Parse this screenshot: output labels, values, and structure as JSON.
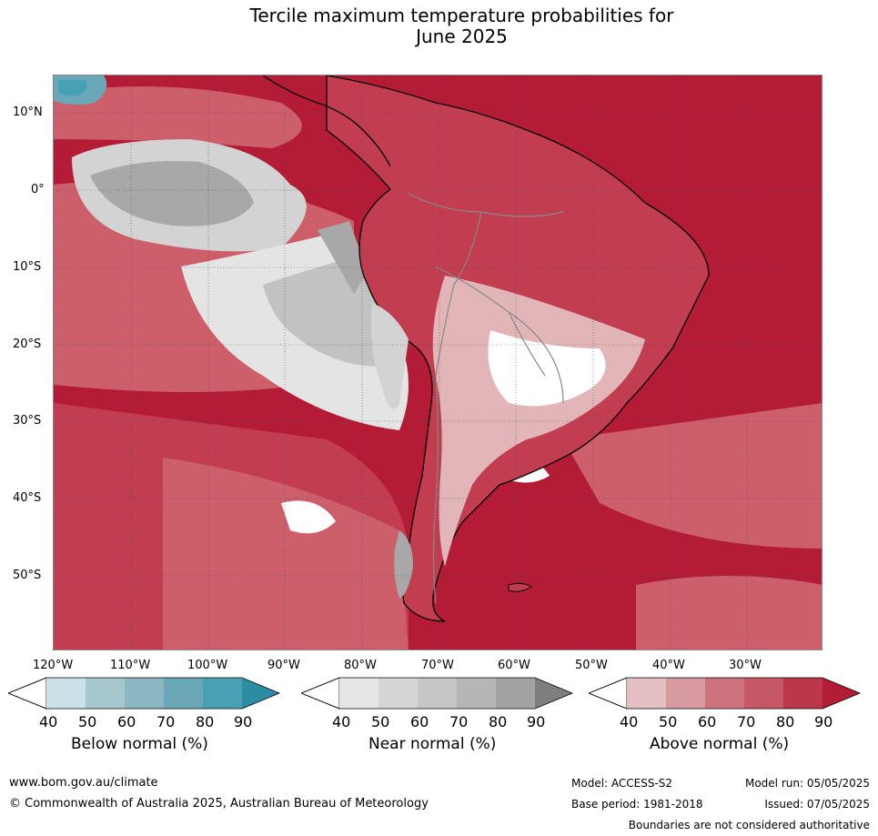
{
  "title": {
    "line1": "Tercile maximum temperature probabilities for",
    "line2": "June 2025"
  },
  "map": {
    "lat_labels": [
      "10°N",
      "0°",
      "10°S",
      "20°S",
      "30°S",
      "40°S",
      "50°S"
    ],
    "lon_labels": [
      "120°W",
      "110°W",
      "100°W",
      "90°W",
      "80°W",
      "70°W",
      "60°W",
      "50°W",
      "40°W",
      "30°W"
    ],
    "colors": {
      "ocean_high": "#b41c35",
      "above_80": "#c23d4f",
      "above_70": "#cc5f6a",
      "above_60": "#d58a92",
      "above_50": "#e2b5b9",
      "near_50": "#e4e4e4",
      "near_60": "#d3d3d3",
      "near_70": "#c2c2c2",
      "near_80": "#a8a8a8",
      "below": "#4aa5b5",
      "coast": "#000000",
      "border": "#888888"
    }
  },
  "legends": [
    {
      "label": "Below normal (%)",
      "ticks": [
        "40",
        "50",
        "60",
        "70",
        "80",
        "90"
      ],
      "colors": [
        "#cbe2e8",
        "#a6c7ce",
        "#8ab6c2",
        "#6aa8b8",
        "#47a0b3",
        "#2b8ca2"
      ]
    },
    {
      "label": "Near normal (%)",
      "ticks": [
        "40",
        "50",
        "60",
        "70",
        "80",
        "90"
      ],
      "colors": [
        "#e6e6e6",
        "#d6d6d6",
        "#c6c6c6",
        "#b6b6b6",
        "#a2a2a2",
        "#7e7e7e"
      ]
    },
    {
      "label": "Above normal (%)",
      "ticks": [
        "40",
        "50",
        "60",
        "70",
        "80",
        "90"
      ],
      "colors": [
        "#e4bfc2",
        "#d89aa1",
        "#cd737d",
        "#c65764",
        "#bb3749",
        "#b21d36"
      ]
    }
  ],
  "footer": {
    "url": "www.bom.gov.au/climate",
    "copyright": "© Commonwealth of Australia 2025, Australian Bureau of Meteorology",
    "model": "Model: ACCESS-S2",
    "base_period": "Base period: 1981-2018",
    "model_run": "Model run: 05/05/2025",
    "issued": "Issued: 07/05/2025",
    "disclaimer": "Boundaries are not considered authoritative"
  }
}
